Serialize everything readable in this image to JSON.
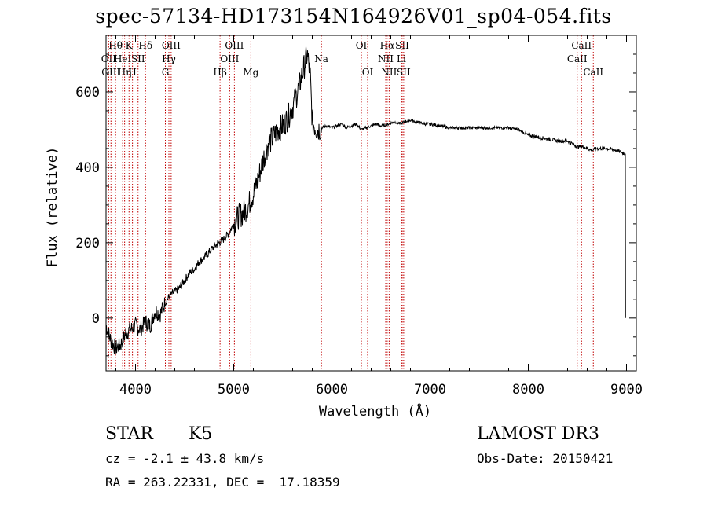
{
  "chart_data": {
    "type": "line",
    "title": "spec-57134-HD173154N164926V01_sp04-054.fits",
    "xlabel": "Wavelength (Å)",
    "ylabel": "Flux (relative)",
    "xlim": [
      3700,
      9100
    ],
    "ylim": [
      -140,
      750
    ],
    "xticks": [
      4000,
      5000,
      6000,
      7000,
      8000,
      9000
    ],
    "yticks": [
      0,
      200,
      400,
      600
    ],
    "series": [
      {
        "name": "flux",
        "x": [
          3700,
          3750,
          3800,
          3850,
          3900,
          3950,
          4000,
          4050,
          4100,
          4150,
          4200,
          4250,
          4300,
          4350,
          4400,
          4450,
          4500,
          4550,
          4600,
          4650,
          4700,
          4750,
          4800,
          4850,
          4900,
          4950,
          5000,
          5050,
          5100,
          5150,
          5200,
          5250,
          5300,
          5350,
          5400,
          5450,
          5500,
          5550,
          5600,
          5650,
          5700,
          5750,
          5780,
          5800,
          5850,
          5900,
          5950,
          6000,
          6050,
          6100,
          6150,
          6200,
          6250,
          6300,
          6350,
          6400,
          6450,
          6500,
          6550,
          6600,
          6650,
          6700,
          6750,
          6800,
          6850,
          6900,
          6950,
          7000,
          7100,
          7200,
          7300,
          7400,
          7500,
          7600,
          7700,
          7800,
          7900,
          8000,
          8100,
          8200,
          8300,
          8400,
          8500,
          8550,
          8600,
          8650,
          8700,
          8800,
          8900,
          8990
        ],
        "y": [
          -20,
          -60,
          -80,
          -70,
          -40,
          -30,
          -20,
          -30,
          -10,
          -20,
          20,
          10,
          40,
          60,
          70,
          80,
          100,
          120,
          130,
          150,
          160,
          175,
          190,
          200,
          210,
          225,
          250,
          270,
          280,
          300,
          330,
          370,
          420,
          460,
          480,
          500,
          510,
          530,
          560,
          600,
          650,
          700,
          640,
          520,
          500,
          505,
          510,
          505,
          510,
          515,
          505,
          510,
          515,
          500,
          505,
          510,
          515,
          510,
          512,
          518,
          520,
          515,
          522,
          525,
          520,
          518,
          515,
          515,
          510,
          505,
          505,
          505,
          505,
          505,
          505,
          505,
          500,
          485,
          480,
          475,
          470,
          470,
          455,
          455,
          450,
          445,
          450,
          450,
          445,
          435
        ]
      }
    ],
    "lines": [
      {
        "wl": 3797,
        "label": "Hθ",
        "row": 0
      },
      {
        "wl": 3727,
        "label": "OII",
        "row": 1
      },
      {
        "wl": 3869,
        "label": "HeI",
        "row": 1
      },
      {
        "wl": 3934,
        "label": "K",
        "row": 0
      },
      {
        "wl": 4026,
        "label": "SII",
        "row": 1
      },
      {
        "wl": 3969,
        "label": "H",
        "row": 2
      },
      {
        "wl": 4102,
        "label": "Hδ",
        "row": 0
      },
      {
        "wl": 3750,
        "label": "OIII",
        "row": 2
      },
      {
        "wl": 3889,
        "label": "Hη",
        "row": 2
      },
      {
        "wl": 4340,
        "label": "Hγ",
        "row": 1
      },
      {
        "wl": 4363,
        "label": "OIII",
        "row": 0
      },
      {
        "wl": 4304,
        "label": "G",
        "row": 2
      },
      {
        "wl": 4861,
        "label": "Hβ",
        "row": 2
      },
      {
        "wl": 4959,
        "label": "OIII",
        "row": 1
      },
      {
        "wl": 5007,
        "label": "OIII",
        "row": 0
      },
      {
        "wl": 5175,
        "label": "Mg",
        "row": 2
      },
      {
        "wl": 5893,
        "label": "Na",
        "row": 1
      },
      {
        "wl": 6300,
        "label": "OI",
        "row": 0
      },
      {
        "wl": 6364,
        "label": "OI",
        "row": 2
      },
      {
        "wl": 6548,
        "label": "NII",
        "row": 1
      },
      {
        "wl": 6563,
        "label": "Hα",
        "row": 0
      },
      {
        "wl": 6583,
        "label": "NII",
        "row": 2
      },
      {
        "wl": 6707,
        "label": "Li",
        "row": 1
      },
      {
        "wl": 6716,
        "label": "SII",
        "row": 0
      },
      {
        "wl": 6731,
        "label": "SII",
        "row": 2
      },
      {
        "wl": 8498,
        "label": "CaII",
        "row": 1
      },
      {
        "wl": 8542,
        "label": "CaII",
        "row": 0
      },
      {
        "wl": 8662,
        "label": "CaII",
        "row": 2
      }
    ]
  },
  "info": {
    "object_type": "STAR",
    "subclass": "K5",
    "survey": "LAMOST DR3",
    "cz": "cz = -2.1 ± 43.8 km/s",
    "obs_date": "Obs-Date: 20150421",
    "coords": "RA = 263.22331, DEC =  17.18359"
  }
}
